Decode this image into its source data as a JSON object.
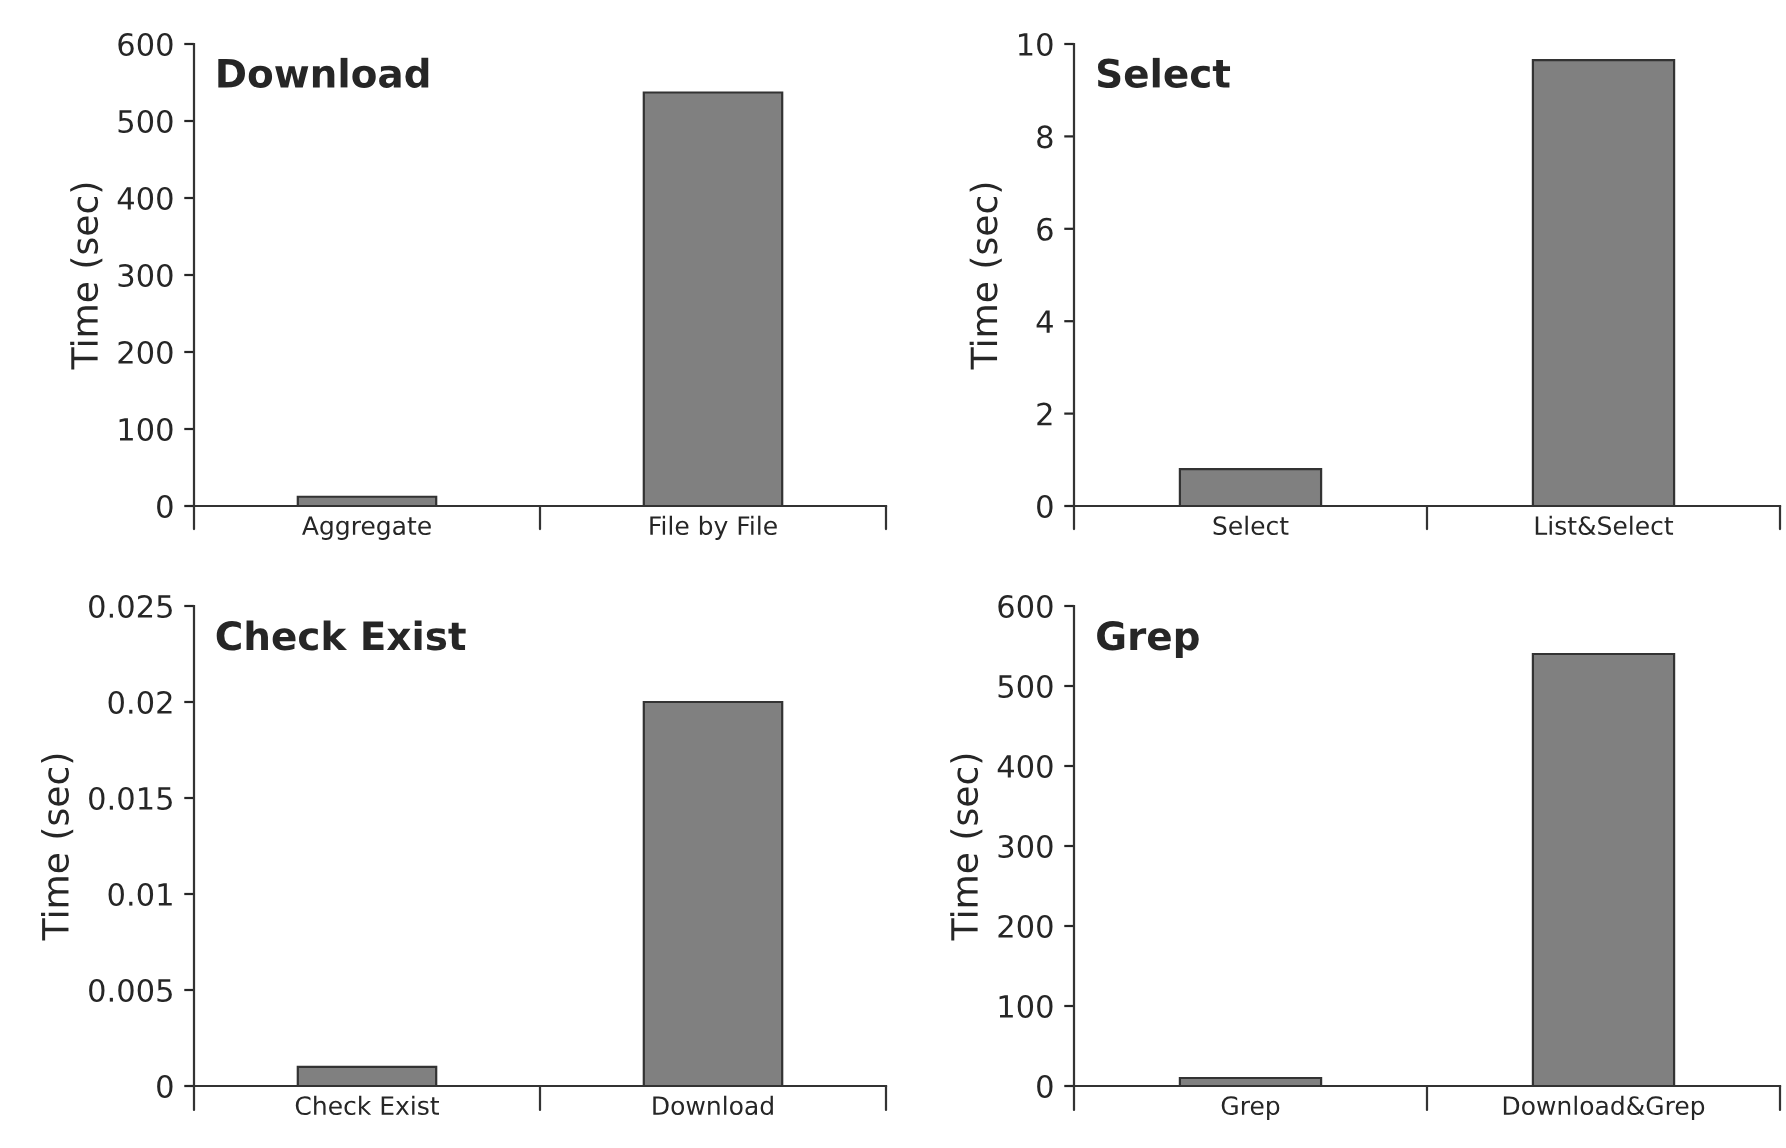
{
  "chart_data": [
    {
      "type": "bar",
      "title": "Download",
      "ylabel": "Time (sec)",
      "categories": [
        "Aggregate",
        "File by File"
      ],
      "values": [
        12,
        537
      ],
      "color": "#808080",
      "ylim": [
        0,
        600
      ],
      "yticks": [
        0,
        100,
        200,
        300,
        400,
        500,
        600
      ],
      "grid": false,
      "legend": false
    },
    {
      "type": "bar",
      "title": "Select",
      "ylabel": "Time (sec)",
      "categories": [
        "Select",
        "List&Select"
      ],
      "values": [
        0.8,
        9.65
      ],
      "color": "#808080",
      "ylim": [
        0,
        10
      ],
      "yticks": [
        0,
        2,
        4,
        6,
        8,
        10
      ],
      "grid": false,
      "legend": false
    },
    {
      "type": "bar",
      "title": "Check Exist",
      "ylabel": "Time (sec)",
      "categories": [
        "Check Exist",
        "Download"
      ],
      "values": [
        0.001,
        0.02
      ],
      "color": "#808080",
      "ylim": [
        0,
        0.025
      ],
      "yticks": [
        0,
        0.005,
        0.01,
        0.015,
        0.02,
        0.025
      ],
      "grid": false,
      "legend": false
    },
    {
      "type": "bar",
      "title": "Grep",
      "ylabel": "Time (sec)",
      "categories": [
        "Grep",
        "Download&Grep"
      ],
      "values": [
        10,
        540
      ],
      "color": "#808080",
      "ylim": [
        0,
        600
      ],
      "yticks": [
        0,
        100,
        200,
        300,
        400,
        500,
        600
      ],
      "grid": false,
      "legend": false
    }
  ]
}
